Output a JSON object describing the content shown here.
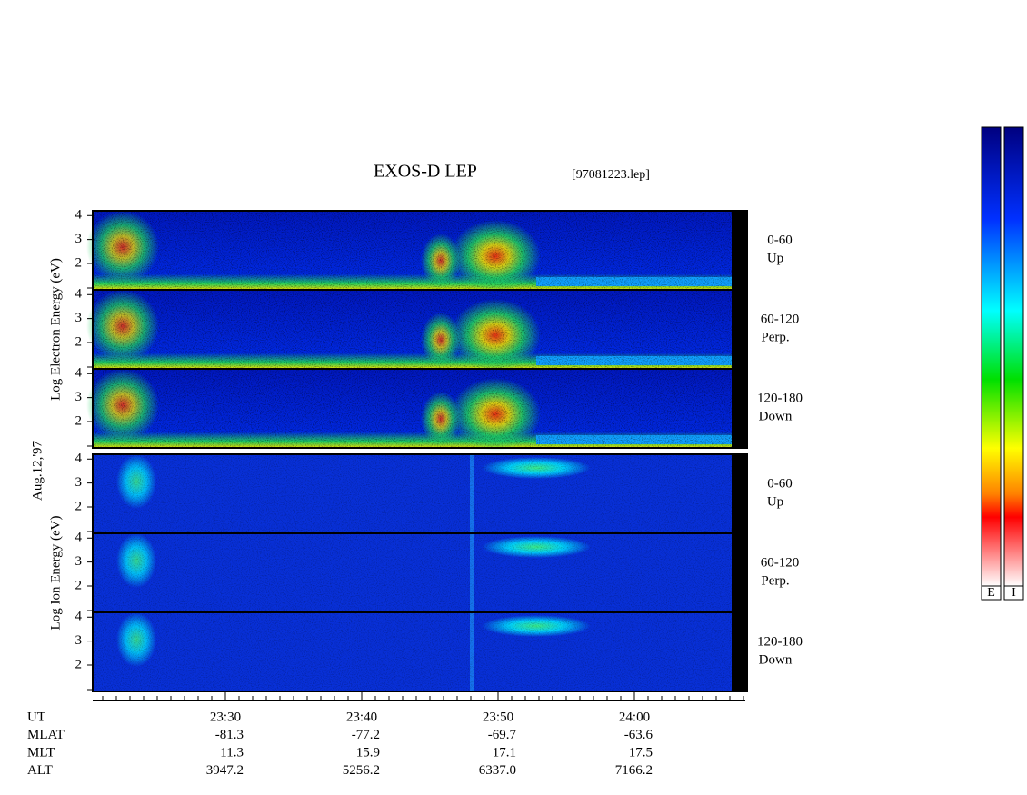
{
  "chart_data": {
    "type": "spectrogram",
    "title": "EXOS-D LEP",
    "file": "[97081223.lep]",
    "date": "Aug.12,'97",
    "time_ticks": [
      "23:30",
      "23:40",
      "23:50",
      "24:00"
    ],
    "electron": {
      "ylabel": "Log Electron Energy (eV)",
      "ylim": [
        0.9,
        4.2
      ],
      "panels": [
        {
          "yticks": [
            4,
            3,
            2
          ],
          "pitch": "0-60",
          "direction": "Up"
        },
        {
          "yticks": [
            4,
            3,
            2
          ],
          "pitch": "60-120",
          "direction": "Perp."
        },
        {
          "yticks": [
            4,
            3,
            2
          ],
          "pitch": "120-180",
          "direction": "Down"
        }
      ]
    },
    "ion": {
      "ylabel": "Log Ion Energy (eV)",
      "ylim": [
        0.9,
        4.2
      ],
      "panels": [
        {
          "yticks": [
            4,
            3,
            2
          ],
          "pitch": "0-60",
          "direction": "Up"
        },
        {
          "yticks": [
            4,
            3,
            2
          ],
          "pitch": "60-120",
          "direction": "Perp."
        },
        {
          "yticks": [
            4,
            3,
            2
          ],
          "pitch": "120-180",
          "direction": "Down"
        }
      ]
    },
    "ephemeris": {
      "labels": [
        "UT",
        "MLAT",
        "MLT",
        "ALT"
      ],
      "UT": [
        "23:30",
        "23:40",
        "23:50",
        "24:00"
      ],
      "MLAT": [
        "-81.3",
        "-77.2",
        "-69.7",
        "-63.6"
      ],
      "MLT": [
        "11.3",
        "15.9",
        "17.1",
        "17.5"
      ],
      "ALT": [
        "3947.2",
        "5256.2",
        "6337.0",
        "7166.2"
      ]
    },
    "colorbar_labels": [
      "E",
      "I"
    ]
  }
}
